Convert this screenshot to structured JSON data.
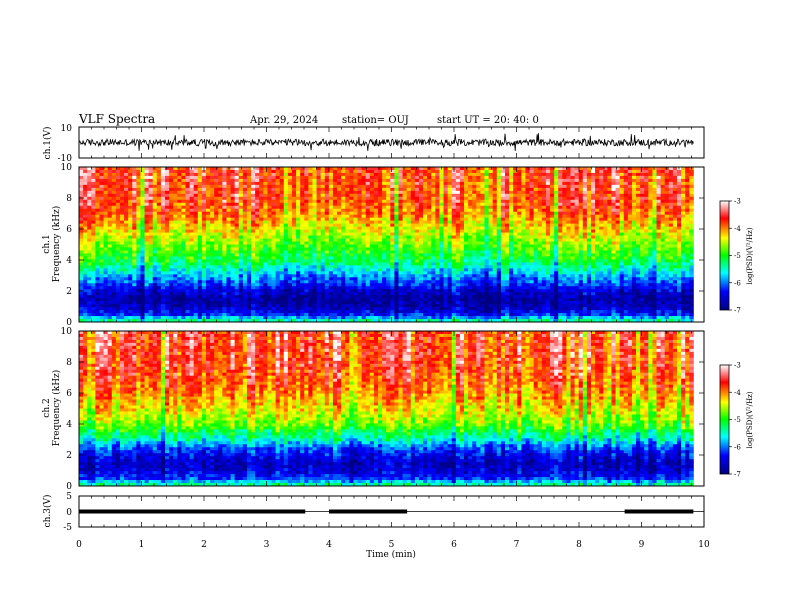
{
  "header": {
    "title": "VLF Spectra",
    "date": "Apr. 29, 2024",
    "station": "station= OUJ",
    "start_ut": "start  UT  =   20: 40: 0"
  },
  "chart_data": [
    {
      "id": "ch1-waveform",
      "type": "line",
      "ylabel": "ch.1(V)",
      "ylim": [
        -10,
        10
      ],
      "y_ticks": [
        "10",
        "-10"
      ],
      "xlim": [
        0,
        10
      ],
      "note": "continuous noisy waveform roughly ±3 V with occasional spikes"
    },
    {
      "id": "ch1-spectrogram",
      "type": "heatmap",
      "ylabel_channel": "ch.1",
      "ylabel": "Frequency  (kHz)",
      "ylim": [
        0,
        10
      ],
      "y_ticks": [
        "0",
        "2",
        "4",
        "6",
        "8",
        "10"
      ],
      "xlim": [
        0,
        9.83
      ],
      "colorbar": {
        "label": "log(PSD)(V²/Hz)",
        "range": [
          -7,
          -3
        ],
        "ticks": [
          "-3",
          "-4",
          "-5",
          "-6",
          "-7"
        ],
        "colors": [
          "#000080",
          "#0000ff",
          "#00ffff",
          "#00ff00",
          "#ffff00",
          "#ff0000",
          "#ffffff"
        ]
      },
      "intensity_by_frequency_khz": [
        {
          "f": 0.0,
          "level": 0.45
        },
        {
          "f": 0.5,
          "level": 0.18
        },
        {
          "f": 1.0,
          "level": 0.08
        },
        {
          "f": 1.5,
          "level": 0.05
        },
        {
          "f": 2.0,
          "level": 0.12
        },
        {
          "f": 2.5,
          "level": 0.22
        },
        {
          "f": 3.0,
          "level": 0.3
        },
        {
          "f": 4.0,
          "level": 0.48
        },
        {
          "f": 5.0,
          "level": 0.58
        },
        {
          "f": 6.0,
          "level": 0.68
        },
        {
          "f": 7.0,
          "level": 0.78
        },
        {
          "f": 8.0,
          "level": 0.83
        },
        {
          "f": 10.0,
          "level": 0.85
        }
      ]
    },
    {
      "id": "ch2-spectrogram",
      "type": "heatmap",
      "ylabel_channel": "ch.2",
      "ylabel": "Frequency  (kHz)",
      "ylim": [
        0,
        10
      ],
      "y_ticks": [
        "0",
        "2",
        "4",
        "6",
        "8",
        "10"
      ],
      "xlim": [
        0,
        9.83
      ],
      "colorbar": {
        "label": "log(PSD)(V²/Hz)",
        "range": [
          -7,
          -3
        ],
        "ticks": [
          "-3",
          "-4",
          "-5",
          "-6",
          "-7"
        ],
        "colors": [
          "#000080",
          "#0000ff",
          "#00ffff",
          "#00ff00",
          "#ffff00",
          "#ff0000",
          "#ffffff"
        ]
      },
      "intensity_by_frequency_khz": [
        {
          "f": 0.0,
          "level": 0.45
        },
        {
          "f": 0.5,
          "level": 0.2
        },
        {
          "f": 1.0,
          "level": 0.12
        },
        {
          "f": 1.5,
          "level": 0.1
        },
        {
          "f": 2.0,
          "level": 0.16
        },
        {
          "f": 2.5,
          "level": 0.24
        },
        {
          "f": 3.0,
          "level": 0.38
        },
        {
          "f": 4.0,
          "level": 0.58
        },
        {
          "f": 5.0,
          "level": 0.68
        },
        {
          "f": 6.0,
          "level": 0.76
        },
        {
          "f": 7.0,
          "level": 0.82
        },
        {
          "f": 8.0,
          "level": 0.85
        },
        {
          "f": 10.0,
          "level": 0.86
        }
      ]
    },
    {
      "id": "ch3-signal",
      "type": "line",
      "ylabel": "ch.3(V)",
      "ylim": [
        -5,
        5
      ],
      "y_ticks": [
        "5",
        "0",
        "-5"
      ],
      "xlim": [
        0,
        10
      ],
      "level_v": 0,
      "on_segments_min": [
        [
          0,
          3.62
        ],
        [
          4.0,
          5.25
        ],
        [
          8.73,
          9.83
        ]
      ]
    }
  ],
  "x_axis": {
    "label": "Time  (min)",
    "ticks": [
      "0",
      "1",
      "2",
      "3",
      "4",
      "5",
      "6",
      "7",
      "8",
      "9",
      "10"
    ],
    "range": [
      0,
      10
    ]
  }
}
